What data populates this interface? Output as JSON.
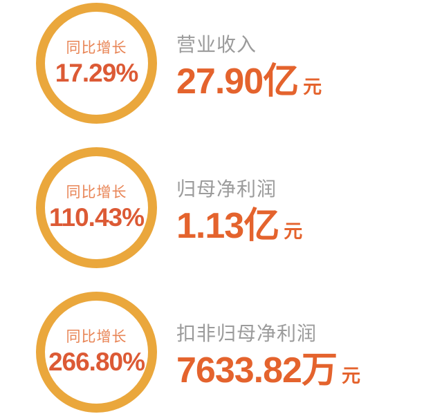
{
  "colors": {
    "ring": "#EAA73C",
    "growth_label": "#E88455",
    "growth_percent": "#DC5A35",
    "metric_value": "#E4632D",
    "metric_label": "#9B9B9B",
    "background": "#FFFFFF"
  },
  "rows": [
    {
      "growth_label": "同比增长",
      "growth_percent": "17.29%",
      "metric_label": "营业收入",
      "value": "27.90",
      "unit": "亿",
      "currency": "元"
    },
    {
      "growth_label": "同比增长",
      "growth_percent": "110.43%",
      "metric_label": "归母净利润",
      "value": "1.13",
      "unit": "亿",
      "currency": "元"
    },
    {
      "growth_label": "同比增长",
      "growth_percent": "266.80%",
      "metric_label": "扣非归母净利润",
      "value": "7633.82",
      "unit": "万",
      "currency": "元"
    }
  ],
  "chart_data": {
    "type": "table",
    "columns": [
      "metric",
      "value",
      "unit",
      "yoy_growth_pct"
    ],
    "rows": [
      [
        "营业收入",
        27.9,
        "亿元",
        17.29
      ],
      [
        "归母净利润",
        1.13,
        "亿元",
        110.43
      ],
      [
        "扣非归母净利润",
        7633.82,
        "万元",
        266.8
      ]
    ]
  }
}
